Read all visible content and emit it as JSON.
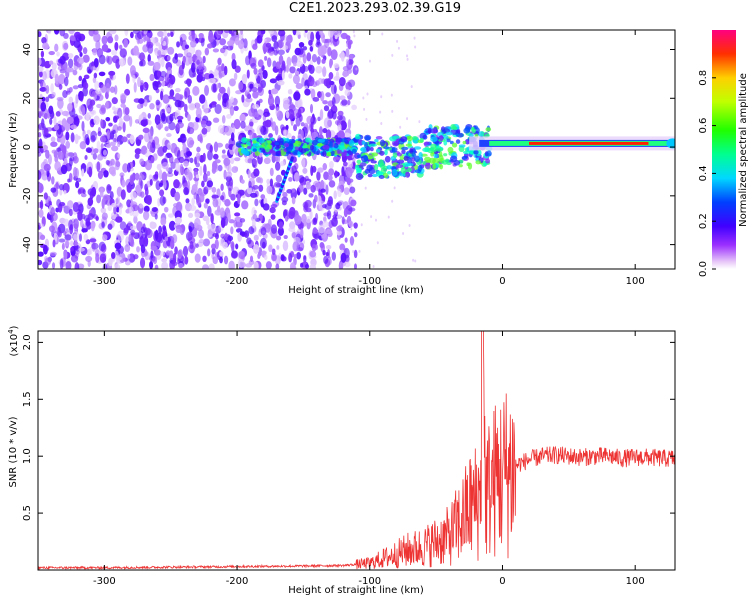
{
  "title": "C2E1.2023.293.02.39.G19",
  "chart_data": [
    {
      "type": "heatmap",
      "xlabel": "Height of straight line (km)",
      "ylabel": "Frequency (Hz)",
      "xlim": [
        -350,
        130
      ],
      "ylim": [
        -50,
        48
      ],
      "xticks": [
        -300,
        -200,
        -100,
        0,
        100
      ],
      "yticks": [
        -40,
        -20,
        0,
        20,
        40
      ],
      "colorbar": {
        "label": "Normalized spectral amplitude",
        "range": [
          0,
          1
        ],
        "ticks": [
          "0.0",
          "0.2",
          "0.4",
          "0.6",
          "0.8"
        ],
        "tick_values": [
          0.0,
          0.2,
          0.4,
          0.6,
          0.8
        ]
      },
      "noise_region_x": [
        -350,
        -115
      ],
      "signal_line_x": [
        -10,
        130
      ],
      "signal_line_freq": 1.5
    },
    {
      "type": "line",
      "xlabel": "Height of straight line (km)",
      "ylabel": "SNR (10 * v/v)",
      "yscale_label": "(x10",
      "yscale_exp": "4",
      "yscale_close": ")",
      "xlim": [
        -350,
        130
      ],
      "ylim": [
        0,
        2.1
      ],
      "xticks": [
        -300,
        -200,
        -100,
        0,
        100
      ],
      "yticks": [
        "0.5",
        "1.0",
        "1.5",
        "2.0"
      ],
      "ytick_values": [
        0.5,
        1.0,
        1.5,
        2.0
      ],
      "series": [
        {
          "color": "#ee3333",
          "x": [
            -350,
            -300,
            -250,
            -200,
            -150,
            -120,
            -100,
            -90,
            -80,
            -70,
            -60,
            -50,
            -40,
            -35,
            -30,
            -25,
            -20,
            -17,
            -15,
            -13,
            -10,
            -5,
            0,
            10,
            20,
            30,
            40,
            50,
            60,
            70,
            80,
            90,
            100,
            110,
            120,
            130
          ],
          "y": [
            0.02,
            0.02,
            0.025,
            0.03,
            0.035,
            0.04,
            0.06,
            0.1,
            0.14,
            0.18,
            0.2,
            0.25,
            0.3,
            0.38,
            0.45,
            0.55,
            0.6,
            0.62,
            2.1,
            0.65,
            0.72,
            0.8,
            0.85,
            0.92,
            0.97,
            1.0,
            1.01,
            1.0,
            0.99,
            1.0,
            1.0,
            0.98,
            0.99,
            0.99,
            0.98,
            0.98
          ]
        }
      ]
    }
  ]
}
